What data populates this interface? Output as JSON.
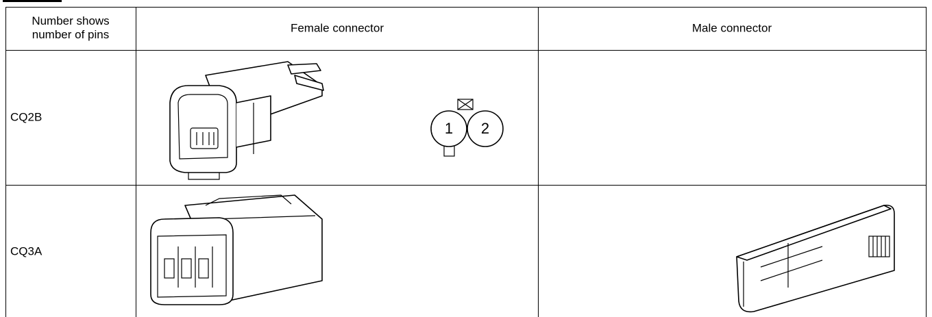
{
  "table": {
    "header": [
      "Number shows\nnumber of pins",
      "Female connector",
      "Male connector"
    ],
    "rows": [
      {
        "name": "CQ2B",
        "female_pins": [
          "1",
          "2"
        ]
      },
      {
        "name": "CQ3A"
      }
    ]
  }
}
